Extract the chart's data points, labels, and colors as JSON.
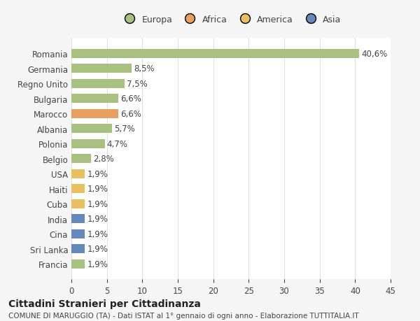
{
  "categories": [
    "Francia",
    "Sri Lanka",
    "Cina",
    "India",
    "Cuba",
    "Haiti",
    "USA",
    "Belgio",
    "Polonia",
    "Albania",
    "Marocco",
    "Bulgaria",
    "Regno Unito",
    "Germania",
    "Romania"
  ],
  "values": [
    1.9,
    1.9,
    1.9,
    1.9,
    1.9,
    1.9,
    1.9,
    2.8,
    4.7,
    5.7,
    6.6,
    6.6,
    7.5,
    8.5,
    40.6
  ],
  "labels": [
    "1,9%",
    "1,9%",
    "1,9%",
    "1,9%",
    "1,9%",
    "1,9%",
    "1,9%",
    "2,8%",
    "4,7%",
    "5,7%",
    "6,6%",
    "6,6%",
    "7,5%",
    "8,5%",
    "40,6%"
  ],
  "colors": [
    "#a8c080",
    "#6688bb",
    "#6688bb",
    "#6688bb",
    "#e8c060",
    "#e8c060",
    "#e8c060",
    "#a8c080",
    "#a8c080",
    "#a8c080",
    "#e8a060",
    "#a8c080",
    "#a8c080",
    "#a8c080",
    "#a8c080"
  ],
  "legend_names": [
    "Europa",
    "Africa",
    "America",
    "Asia"
  ],
  "legend_colors": [
    "#a8c080",
    "#e8a060",
    "#e8c060",
    "#6688bb"
  ],
  "title1": "Cittadini Stranieri per Cittadinanza",
  "title2": "COMUNE DI MARUGGIO (TA) - Dati ISTAT al 1° gennaio di ogni anno - Elaborazione TUTTITALIA.IT",
  "xlim": [
    0,
    45
  ],
  "xticks": [
    0,
    5,
    10,
    15,
    20,
    25,
    30,
    35,
    40,
    45
  ],
  "background_color": "#f5f5f5",
  "bar_background": "#ffffff",
  "grid_color": "#dddddd",
  "text_color": "#444444",
  "label_fontsize": 8.5,
  "tick_fontsize": 8.5
}
